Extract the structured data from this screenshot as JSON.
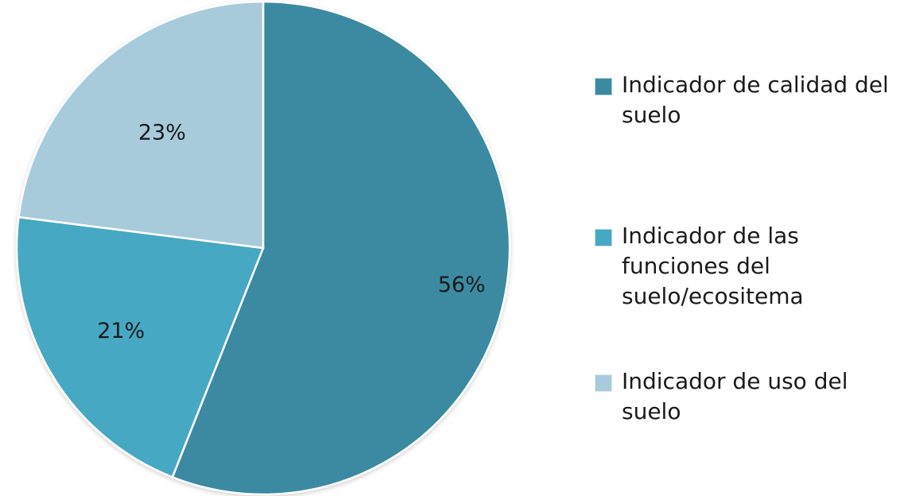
{
  "chart_data": {
    "type": "pie",
    "title": "",
    "categories": [
      "Indicador de calidad del suelo",
      "Indicador de las funciones del suelo/ecositema",
      "Indicador de uso del suelo"
    ],
    "values": [
      56,
      21,
      23
    ],
    "data_labels": [
      "56%",
      "21%",
      "23%"
    ],
    "colors": [
      "#3b8aa2",
      "#47a8c4",
      "#a7cbdb"
    ],
    "legend_position": "right",
    "start_angle": "12 o'clock",
    "direction": "clockwise"
  },
  "legend": {
    "items": [
      {
        "label": "Indicador de calidad del suelo",
        "color": "#3b8aa2"
      },
      {
        "label": "Indicador de las funciones del suelo/ecositema",
        "color": "#47a8c4"
      },
      {
        "label": "Indicador de uso del suelo",
        "color": "#a7cbdb"
      }
    ]
  }
}
